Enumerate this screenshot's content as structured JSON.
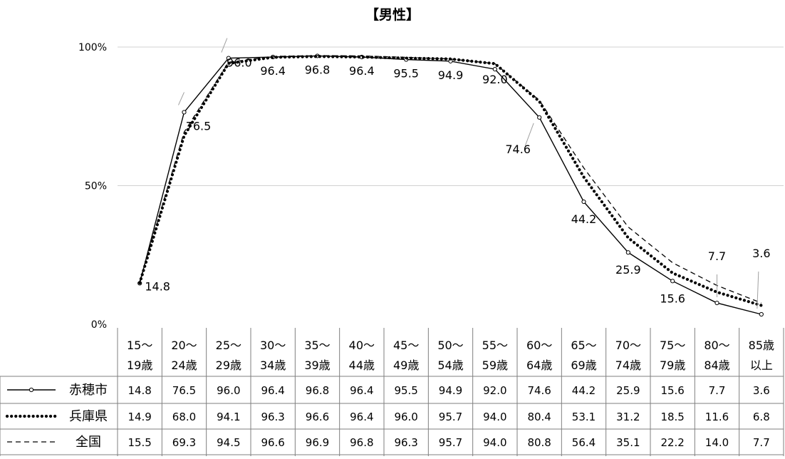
{
  "chart_data": {
    "type": "line",
    "title": "【男性】",
    "xlabel": "",
    "ylabel": "",
    "ylim": [
      0,
      100
    ],
    "yticks": [
      "0%",
      "50%",
      "100%"
    ],
    "grid": true,
    "legend_placement": "table-left",
    "categories": [
      [
        "15～",
        "19歳"
      ],
      [
        "20～",
        "24歳"
      ],
      [
        "25～",
        "29歳"
      ],
      [
        "30～",
        "34歳"
      ],
      [
        "35～",
        "39歳"
      ],
      [
        "40～",
        "44歳"
      ],
      [
        "45～",
        "49歳"
      ],
      [
        "50～",
        "54歳"
      ],
      [
        "55～",
        "59歳"
      ],
      [
        "60～",
        "64歳"
      ],
      [
        "65～",
        "69歳"
      ],
      [
        "70～",
        "74歳"
      ],
      [
        "75～",
        "79歳"
      ],
      [
        "80～",
        "84歳"
      ],
      [
        "85歳",
        "以上"
      ]
    ],
    "series": [
      {
        "name": "赤穂市",
        "style": "solid-marker",
        "color": "#000000",
        "values": [
          14.8,
          76.5,
          96.0,
          96.4,
          96.8,
          96.4,
          95.5,
          94.9,
          92.0,
          74.6,
          44.2,
          25.9,
          15.6,
          7.7,
          3.6
        ],
        "labels": [
          "14.8",
          "76.5",
          "96.0",
          "96.4",
          "96.8",
          "96.4",
          "95.5",
          "94.9",
          "92.0",
          "74.6",
          "44.2",
          "25.9",
          "15.6",
          "7.7",
          "3.6"
        ]
      },
      {
        "name": "兵庫県",
        "style": "dotted",
        "color": "#000000",
        "values": [
          14.9,
          68.0,
          94.1,
          96.3,
          96.6,
          96.4,
          96.0,
          95.7,
          94.0,
          80.4,
          53.1,
          31.2,
          18.5,
          11.6,
          6.8
        ],
        "labels": [
          "14.9",
          "68.0",
          "94.1",
          "96.3",
          "96.6",
          "96.4",
          "96.0",
          "95.7",
          "94.0",
          "80.4",
          "53.1",
          "31.2",
          "18.5",
          "11.6",
          "6.8"
        ]
      },
      {
        "name": "全国",
        "style": "dashed",
        "color": "#000000",
        "values": [
          15.5,
          69.3,
          94.5,
          96.6,
          96.9,
          96.8,
          96.3,
          95.7,
          94.0,
          80.8,
          56.4,
          35.1,
          22.2,
          14.0,
          7.7
        ],
        "labels": [
          "15.5",
          "69.3",
          "94.5",
          "96.6",
          "96.9",
          "96.8",
          "96.3",
          "95.7",
          "94.0",
          "80.8",
          "56.4",
          "35.1",
          "22.2",
          "14.0",
          "7.7"
        ]
      }
    ],
    "data_labels_series": 0
  }
}
